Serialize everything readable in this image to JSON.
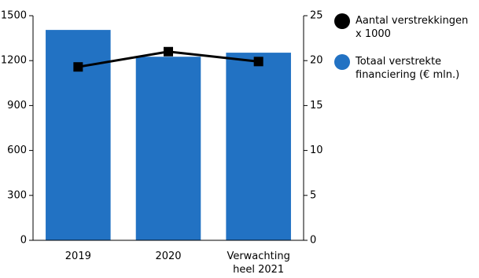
{
  "chart_data": {
    "type": "bar-line",
    "categories": [
      "2019",
      "2020",
      "Verwachting heel 2021"
    ],
    "series": [
      {
        "name": "Aantal verstrekkingen x 1000",
        "type": "line",
        "axis": "y2",
        "color": "#000000",
        "values": [
          19.3,
          21.0,
          19.9
        ]
      },
      {
        "name": "Totaal verstrekte financiering (€ mln.)",
        "type": "bar",
        "color": "#2272c3",
        "values": [
          1405,
          1226,
          1253
        ]
      }
    ],
    "ylim": [
      0,
      1500
    ],
    "yticks": [
      0,
      300,
      600,
      900,
      1200,
      1500
    ],
    "y2lim": [
      0,
      25
    ],
    "y2ticks": [
      0,
      5,
      10,
      15,
      20,
      25
    ]
  }
}
